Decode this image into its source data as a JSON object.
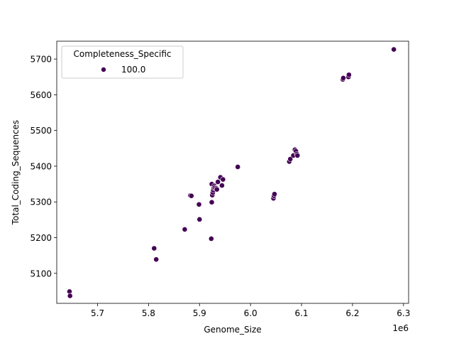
{
  "chart_data": {
    "type": "scatter",
    "xlabel": "Genome_Size",
    "ylabel": "Total_Coding_Sequences",
    "x_offset_text": "1e6",
    "x_scale_factor": 1000000,
    "xlim": [
      5.62,
      6.31
    ],
    "ylim": [
      5016,
      5750
    ],
    "x_ticks": [
      5.7,
      5.8,
      5.9,
      6.0,
      6.1,
      6.2,
      6.3
    ],
    "x_tick_labels": [
      "5.7",
      "5.8",
      "5.9",
      "6.0",
      "6.1",
      "6.2",
      "6.3"
    ],
    "y_ticks": [
      5100,
      5200,
      5300,
      5400,
      5500,
      5600,
      5700
    ],
    "y_tick_labels": [
      "5100",
      "5200",
      "5300",
      "5400",
      "5500",
      "5600",
      "5700"
    ],
    "grid": false,
    "legend": {
      "title": "Completeness_Specific",
      "placement": "upper-left",
      "entries": [
        {
          "label": "100.0",
          "color": "#440154"
        }
      ]
    },
    "marker_color": "#440154",
    "marker_edge_color": "#ffffff",
    "series": [
      {
        "name": "100.0",
        "points": [
          {
            "x": 5.645,
            "y": 5049
          },
          {
            "x": 5.646,
            "y": 5037
          },
          {
            "x": 5.811,
            "y": 5170
          },
          {
            "x": 5.815,
            "y": 5139
          },
          {
            "x": 5.871,
            "y": 5223
          },
          {
            "x": 5.882,
            "y": 5318
          },
          {
            "x": 5.884,
            "y": 5317
          },
          {
            "x": 5.899,
            "y": 5293
          },
          {
            "x": 5.9,
            "y": 5251
          },
          {
            "x": 5.923,
            "y": 5197
          },
          {
            "x": 5.924,
            "y": 5299
          },
          {
            "x": 5.924,
            "y": 5350
          },
          {
            "x": 5.925,
            "y": 5319
          },
          {
            "x": 5.926,
            "y": 5326
          },
          {
            "x": 5.927,
            "y": 5333
          },
          {
            "x": 5.928,
            "y": 5339
          },
          {
            "x": 5.929,
            "y": 5345
          },
          {
            "x": 5.93,
            "y": 5340
          },
          {
            "x": 5.933,
            "y": 5338
          },
          {
            "x": 5.934,
            "y": 5335
          },
          {
            "x": 5.936,
            "y": 5356
          },
          {
            "x": 5.941,
            "y": 5369
          },
          {
            "x": 5.944,
            "y": 5346
          },
          {
            "x": 5.946,
            "y": 5363
          },
          {
            "x": 5.975,
            "y": 5398
          },
          {
            "x": 6.045,
            "y": 5310
          },
          {
            "x": 6.046,
            "y": 5317
          },
          {
            "x": 6.047,
            "y": 5322
          },
          {
            "x": 6.076,
            "y": 5413
          },
          {
            "x": 6.078,
            "y": 5420
          },
          {
            "x": 6.084,
            "y": 5430
          },
          {
            "x": 6.087,
            "y": 5446
          },
          {
            "x": 6.089,
            "y": 5442
          },
          {
            "x": 6.091,
            "y": 5434
          },
          {
            "x": 6.092,
            "y": 5430
          },
          {
            "x": 6.181,
            "y": 5643
          },
          {
            "x": 6.182,
            "y": 5647
          },
          {
            "x": 6.192,
            "y": 5650
          },
          {
            "x": 6.193,
            "y": 5656
          },
          {
            "x": 6.281,
            "y": 5727
          }
        ]
      }
    ]
  }
}
